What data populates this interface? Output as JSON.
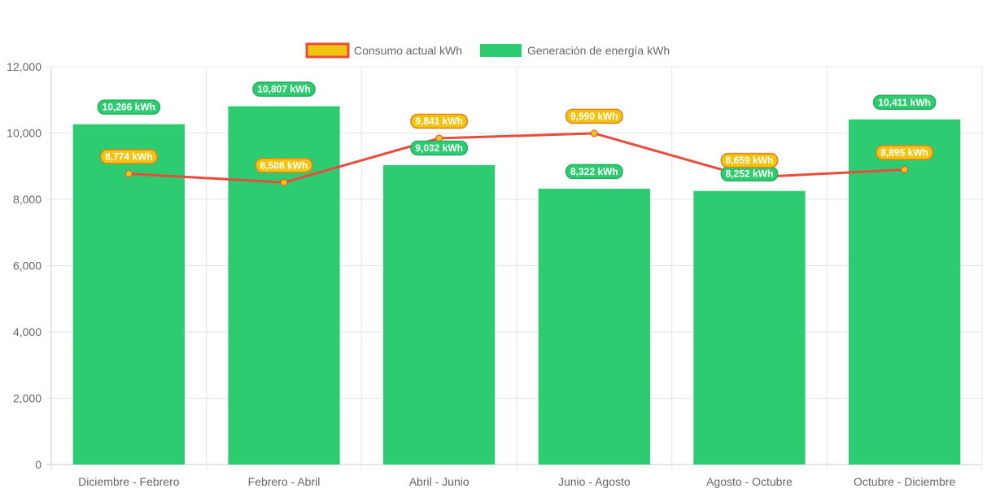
{
  "chart_data": {
    "type": "bar",
    "categories": [
      "Diciembre - Febrero",
      "Febrero - Abril",
      "Abril - Junio",
      "Junio - Agosto",
      "Agosto - Octubre",
      "Octubre - Diciembre"
    ],
    "series": [
      {
        "name": "Consumo actual kWh",
        "type": "line",
        "values": [
          8774,
          8508,
          9841,
          9990,
          8659,
          8895
        ],
        "labels": [
          "8,774 kWh",
          "8,508 kWh",
          "9,841 kWh",
          "9,990 kWh",
          "8,659 kWh",
          "8,895 kWh"
        ],
        "color": "#e74c3c",
        "label_color": "#f1c40f"
      },
      {
        "name": "Generación de energía kWh",
        "type": "bar",
        "values": [
          10266,
          10807,
          9032,
          8322,
          8252,
          10411
        ],
        "labels": [
          "10,266 kWh",
          "10,807 kWh",
          "9,032 kWh",
          "8,322 kWh",
          "8,252 kWh",
          "10,411 kWh"
        ],
        "color": "#2ecc71"
      }
    ],
    "ylim": [
      0,
      12000
    ],
    "yticks": [
      0,
      2000,
      4000,
      6000,
      8000,
      10000,
      12000
    ],
    "ytick_labels": [
      "0",
      "2,000",
      "4,000",
      "6,000",
      "8,000",
      "10,000",
      "12,000"
    ],
    "grid": true,
    "legend_position": "top"
  }
}
